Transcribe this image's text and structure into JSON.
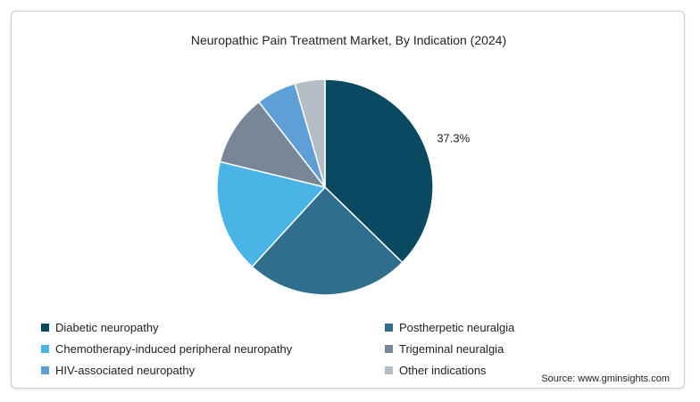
{
  "chart_data": {
    "type": "pie",
    "title": "Neuropathic Pain Treatment Market, By Indication (2024)",
    "slices": [
      {
        "label": "Diabetic neuropathy",
        "value": 37.3,
        "color": "#0a4a60",
        "data_label": "37.3%"
      },
      {
        "label": "Postherpetic neuralgia",
        "value": 24.5,
        "color": "#2f6f8d",
        "data_label": ""
      },
      {
        "label": "Chemotherapy-induced peripheral neuropathy",
        "value": 17.0,
        "color": "#4ab4e6",
        "data_label": ""
      },
      {
        "label": "Trigeminal neuralgia",
        "value": 10.7,
        "color": "#788797",
        "data_label": ""
      },
      {
        "label": "HIV-associated neuropathy",
        "value": 6.0,
        "color": "#5f9fd8",
        "data_label": ""
      },
      {
        "label": "Other indications",
        "value": 4.5,
        "color": "#b4bcc4",
        "data_label": ""
      }
    ],
    "legend_position": "bottom"
  },
  "source": "Source: www.gminsights.com"
}
